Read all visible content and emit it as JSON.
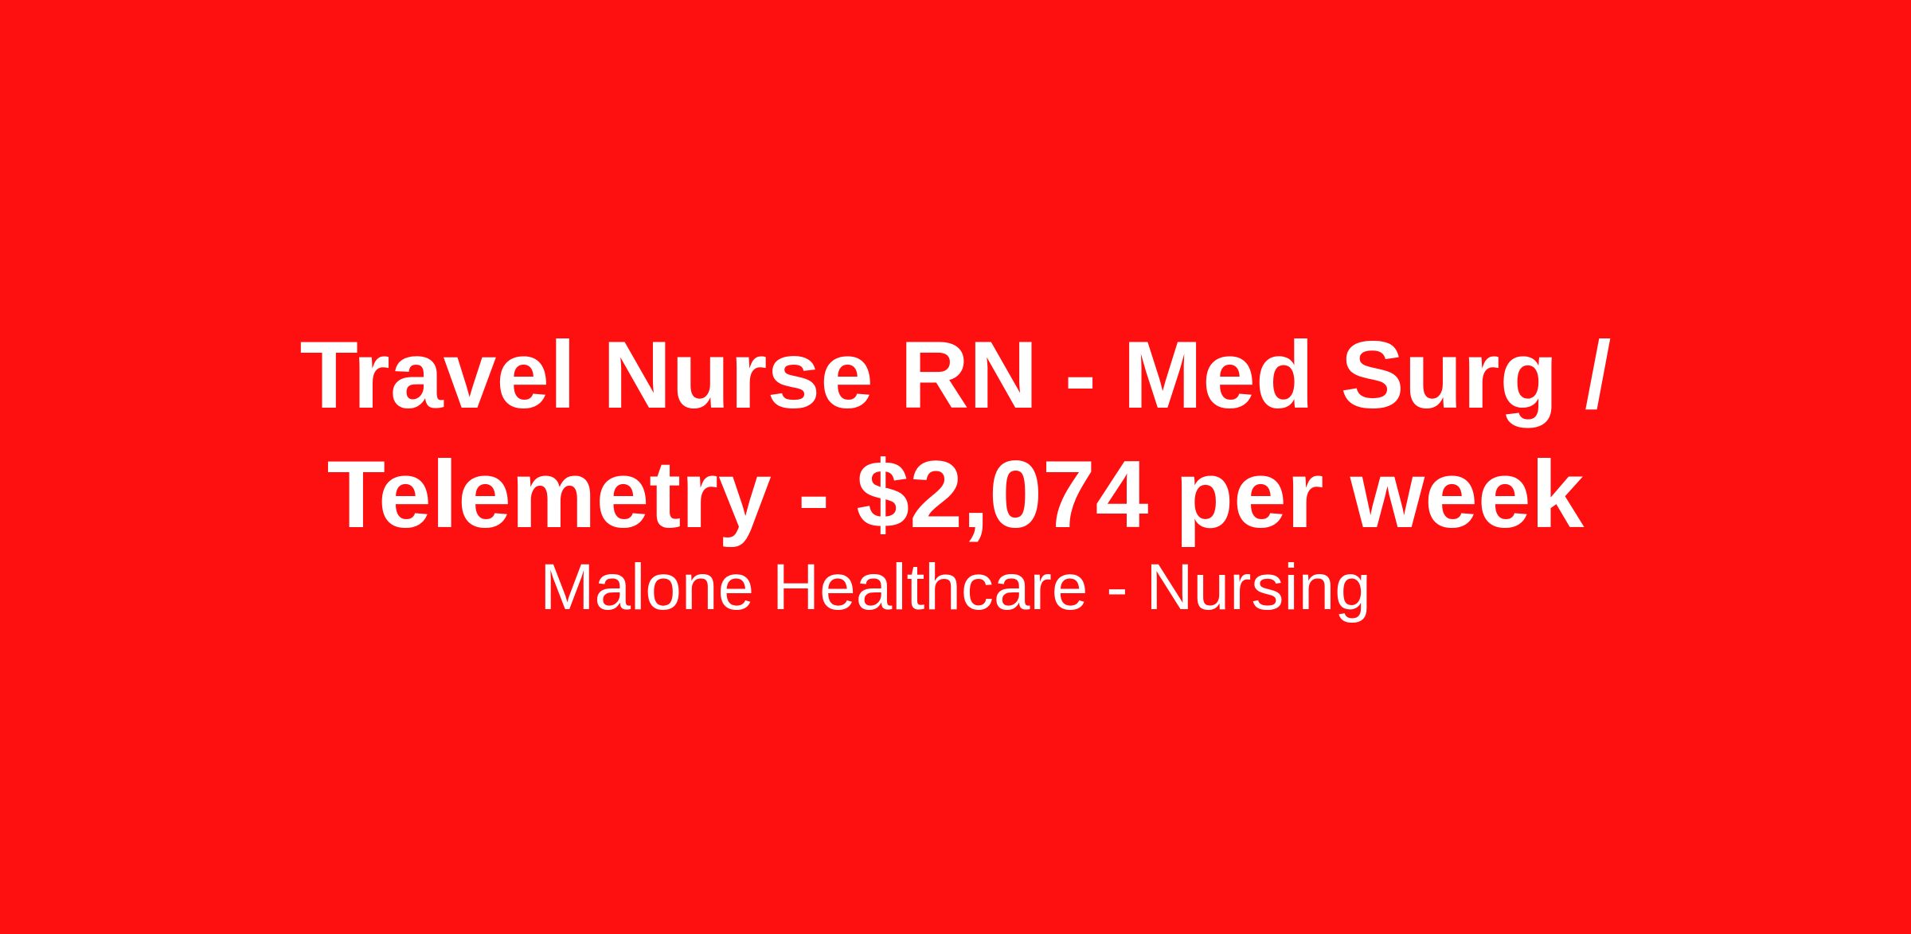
{
  "title": "Travel Nurse RN - Med Surg / Telemetry - $2,074 per week",
  "subtitle": "Malone Healthcare - Nursing",
  "colors": {
    "background": "#fe1010",
    "text": "#ffffff"
  }
}
